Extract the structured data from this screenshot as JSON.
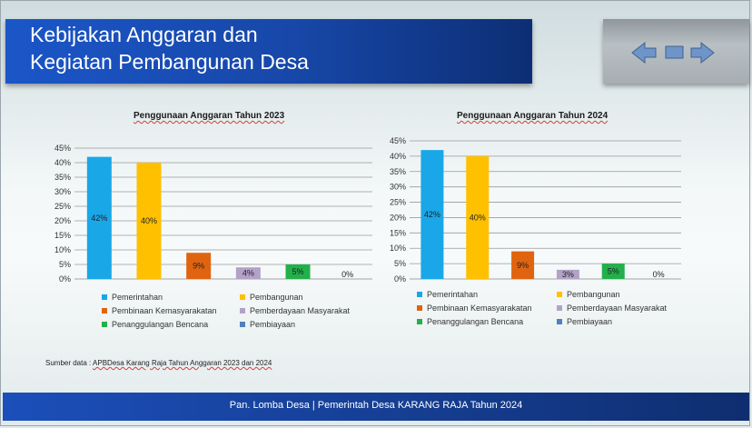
{
  "header": {
    "title_line1": "Kebijakan Anggaran dan",
    "title_line2": "Kegiatan Pembangunan Desa"
  },
  "nav": {
    "icons": [
      "arrow-left-icon",
      "square-icon",
      "arrow-right-icon"
    ]
  },
  "source_prefix": "Sumber data : ",
  "source_rest": "APBDesa Karang Raja Tahun Anggaran 2023 dan 2024",
  "footer": "Pan. Lomba Desa | Pemerintah Desa KARANG RAJA Tahun 2024",
  "chart_data": [
    {
      "type": "bar",
      "title": "Penggunaan Anggaran Tahun 2023",
      "categories": [
        "Pemerintahan",
        "Pembangunan",
        "Pembinaan Kemasyarakatan",
        "Pemberdayaan Masyarakat",
        "Penanggulangan Bencana",
        "Pembiayaan"
      ],
      "values": [
        42,
        40,
        9,
        4,
        5,
        0
      ],
      "data_labels": [
        "42%",
        "40%",
        "9%",
        "4%",
        "5%",
        "0%"
      ],
      "colors": [
        "#19a7e8",
        "#ffc000",
        "#e06410",
        "#b3a2c7",
        "#22b04b",
        "#4f81bd"
      ],
      "ylim": [
        0,
        45
      ],
      "yticks": [
        "0%",
        "5%",
        "10%",
        "15%",
        "20%",
        "25%",
        "30%",
        "35%",
        "40%",
        "45%"
      ],
      "grid": true,
      "legend": "bottom"
    },
    {
      "type": "bar",
      "title": "Penggunaan Anggaran Tahun 2024",
      "categories": [
        "Pemerintahan",
        "Pembangunan",
        "Pembinaan Kemasyarakatan",
        "Pemberdayaan Masyarakat",
        "Penanggulangan Bencana",
        "Pembiayaan"
      ],
      "values": [
        42,
        40,
        9,
        3,
        5,
        0
      ],
      "data_labels": [
        "42%",
        "40%",
        "9%",
        "3%",
        "5%",
        "0%"
      ],
      "colors": [
        "#19a7e8",
        "#ffc000",
        "#e06410",
        "#b3a2c7",
        "#22b04b",
        "#4f81bd"
      ],
      "ylim": [
        0,
        45
      ],
      "yticks": [
        "0%",
        "5%",
        "10%",
        "15%",
        "20%",
        "25%",
        "30%",
        "35%",
        "40%",
        "45%"
      ],
      "grid": true,
      "legend": "bottom"
    }
  ]
}
